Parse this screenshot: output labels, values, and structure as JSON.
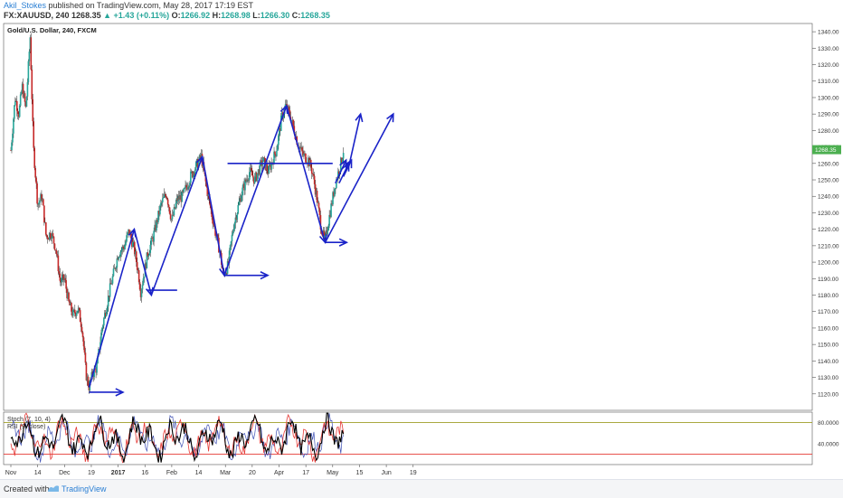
{
  "header": {
    "author": "Akil_Stokes",
    "published": "published on TradingView.com, May 28, 2017 17:19 EST",
    "symbol": "FX:XAUUSD, 240",
    "last": "1268.35",
    "change": "+1.43 (+0.11%)",
    "open_label": "O:",
    "open": "1266.92",
    "high_label": "H:",
    "high": "1268.98",
    "low_label": "L:",
    "low": "1266.30",
    "close_label": "C:",
    "close": "1268.35"
  },
  "footer": {
    "created": "Created with",
    "brand": "TradingView"
  },
  "colors": {
    "drawing": "#1a23c8",
    "up": "#26a69a",
    "down": "#c62828",
    "price_badge": "#4caf50",
    "osc_k": "#000000",
    "osc_d": "#e53935",
    "osc_other": "#3f51b5",
    "osc_level": "#e53935"
  },
  "chart_data": {
    "type": "candlestick",
    "title": "Gold/U.S. Dollar, 240, FXCM",
    "last_price": 1268.35,
    "ylim": [
      1110,
      1345
    ],
    "y_ticks": [
      "1340.00",
      "1330.00",
      "1320.00",
      "1310.00",
      "1300.00",
      "1290.00",
      "1280.00",
      "1270.00",
      "1260.00",
      "1250.00",
      "1240.00",
      "1230.00",
      "1220.00",
      "1210.00",
      "1200.00",
      "1190.00",
      "1180.00",
      "1170.00",
      "1160.00",
      "1150.00",
      "1140.00",
      "1130.00",
      "1120.00"
    ],
    "y_tick_values": [
      1340,
      1330,
      1320,
      1310,
      1300,
      1290,
      1280,
      1270,
      1260,
      1250,
      1240,
      1230,
      1220,
      1210,
      1200,
      1190,
      1180,
      1170,
      1160,
      1150,
      1140,
      1130,
      1120
    ],
    "x_ticks": [
      "Nov",
      "14",
      "Dec",
      "19",
      "2017",
      "16",
      "Feb",
      "14",
      "Mar",
      "20",
      "Apr",
      "17",
      "May",
      "15",
      "Jun",
      "19"
    ],
    "x_tick_positions": [
      0.0,
      0.5,
      1.0,
      1.5,
      2.0,
      2.5,
      3.0,
      3.5,
      4.0,
      4.5,
      5.0,
      5.5,
      6.0,
      6.5,
      7.0,
      7.5
    ],
    "price_path": [
      [
        0.0,
        1268
      ],
      [
        0.08,
        1300
      ],
      [
        0.15,
        1290
      ],
      [
        0.21,
        1307
      ],
      [
        0.28,
        1293
      ],
      [
        0.36,
        1337
      ],
      [
        0.42,
        1270
      ],
      [
        0.5,
        1235
      ],
      [
        0.58,
        1240
      ],
      [
        0.66,
        1215
      ],
      [
        0.75,
        1218
      ],
      [
        0.84,
        1208
      ],
      [
        0.92,
        1188
      ],
      [
        1.0,
        1190
      ],
      [
        1.08,
        1175
      ],
      [
        1.16,
        1168
      ],
      [
        1.25,
        1172
      ],
      [
        1.33,
        1160
      ],
      [
        1.4,
        1132
      ],
      [
        1.46,
        1124
      ],
      [
        1.52,
        1132
      ],
      [
        1.6,
        1136
      ],
      [
        1.7,
        1160
      ],
      [
        1.85,
        1184
      ],
      [
        2.0,
        1205
      ],
      [
        2.12,
        1210
      ],
      [
        2.2,
        1219
      ],
      [
        2.3,
        1208
      ],
      [
        2.38,
        1193
      ],
      [
        2.42,
        1182
      ],
      [
        2.55,
        1205
      ],
      [
        2.65,
        1215
      ],
      [
        2.8,
        1235
      ],
      [
        2.9,
        1242
      ],
      [
        3.0,
        1225
      ],
      [
        3.1,
        1238
      ],
      [
        3.2,
        1240
      ],
      [
        3.35,
        1252
      ],
      [
        3.48,
        1260
      ],
      [
        3.55,
        1264
      ],
      [
        3.65,
        1245
      ],
      [
        3.8,
        1220
      ],
      [
        3.9,
        1206
      ],
      [
        3.96,
        1192
      ],
      [
        4.05,
        1198
      ],
      [
        4.15,
        1222
      ],
      [
        4.3,
        1242
      ],
      [
        4.45,
        1255
      ],
      [
        4.55,
        1250
      ],
      [
        4.7,
        1262
      ],
      [
        4.8,
        1255
      ],
      [
        4.95,
        1268
      ],
      [
        5.05,
        1288
      ],
      [
        5.12,
        1295
      ],
      [
        5.22,
        1288
      ],
      [
        5.35,
        1272
      ],
      [
        5.45,
        1265
      ],
      [
        5.55,
        1262
      ],
      [
        5.62,
        1255
      ],
      [
        5.7,
        1240
      ],
      [
        5.78,
        1222
      ],
      [
        5.85,
        1212
      ],
      [
        5.95,
        1230
      ],
      [
        6.05,
        1248
      ],
      [
        6.15,
        1260
      ],
      [
        6.2,
        1268
      ]
    ],
    "oscillator": {
      "labels": [
        "Stoch (7, 10, 4)",
        "RSI (9, close)"
      ],
      "levels": [
        80,
        20
      ],
      "y_ticks": [
        "80.0000",
        "40.0000"
      ],
      "y_tick_values": [
        80,
        40
      ]
    },
    "drawings": {
      "arrows": [
        [
          [
            1.46,
            1121
          ],
          [
            2.09,
            1121
          ]
        ],
        [
          [
            1.46,
            1124
          ],
          [
            2.3,
            1220
          ]
        ],
        [
          [
            2.3,
            1220
          ],
          [
            2.62,
            1180
          ]
        ],
        [
          [
            2.62,
            1180
          ],
          [
            3.57,
            1264
          ]
        ],
        [
          [
            3.57,
            1264
          ],
          [
            3.98,
            1192
          ]
        ],
        [
          [
            3.98,
            1192
          ],
          [
            4.79,
            1192
          ]
        ],
        [
          [
            3.98,
            1192
          ],
          [
            5.14,
            1295
          ]
        ],
        [
          [
            5.14,
            1295
          ],
          [
            5.86,
            1212
          ]
        ],
        [
          [
            5.86,
            1212
          ],
          [
            6.26,
            1212
          ]
        ],
        [
          [
            5.86,
            1212
          ],
          [
            7.13,
            1290
          ]
        ],
        [
          [
            6.05,
            1248
          ],
          [
            6.25,
            1262
          ]
        ],
        [
          [
            6.12,
            1248
          ],
          [
            6.3,
            1260
          ]
        ],
        [
          [
            6.2,
            1252
          ],
          [
            6.35,
            1262
          ]
        ],
        [
          [
            6.3,
            1258
          ],
          [
            6.52,
            1290
          ]
        ]
      ],
      "plain_lines": [
        [
          [
            2.55,
            1183
          ],
          [
            3.1,
            1183
          ]
        ],
        [
          [
            4.04,
            1260
          ],
          [
            6.0,
            1260
          ]
        ]
      ]
    }
  }
}
